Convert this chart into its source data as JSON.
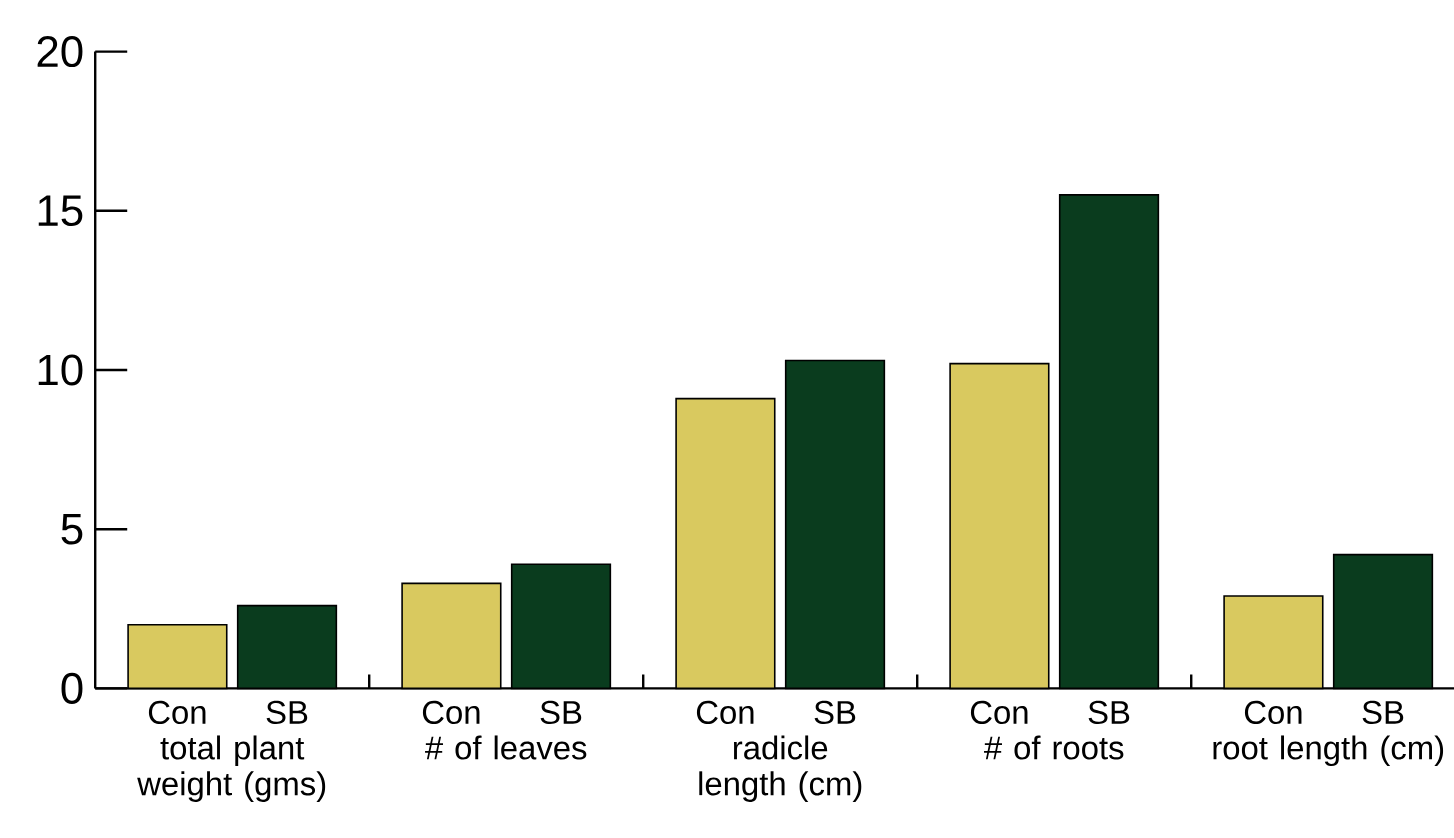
{
  "chart_data": {
    "type": "bar",
    "categories": [
      "total plant weight (gms)",
      "# of leaves",
      "radicle length (cm)",
      "# of roots",
      "root length (cm)"
    ],
    "series": [
      {
        "name": "Con",
        "color": "#d9c95f",
        "values": [
          2.0,
          3.3,
          9.1,
          10.2,
          2.9
        ]
      },
      {
        "name": "SB",
        "color": "#0a3c1e",
        "values": [
          2.6,
          3.9,
          10.3,
          15.5,
          4.2
        ]
      }
    ],
    "ylim": [
      0,
      20
    ],
    "yticks": [
      0,
      5,
      10,
      15,
      20
    ]
  }
}
